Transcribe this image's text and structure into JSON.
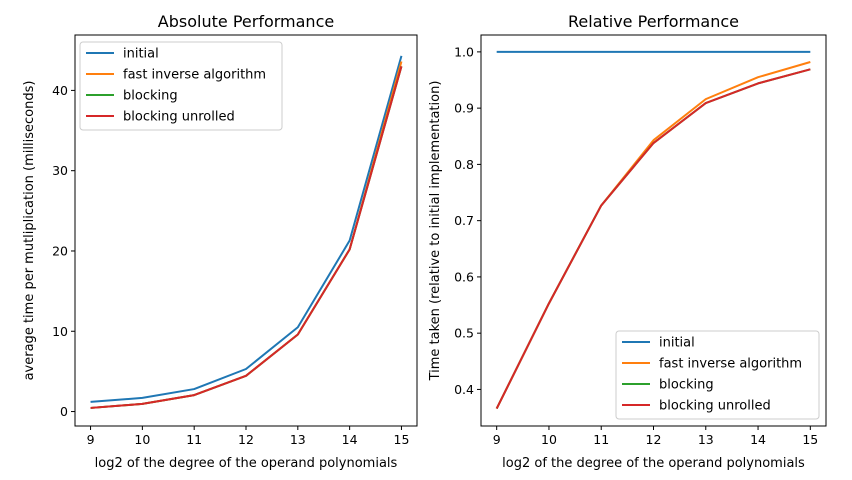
{
  "chart_data": [
    {
      "type": "line",
      "title": "Absolute Performance",
      "xlabel": "log2 of the degree of the operand polynomials",
      "ylabel": "average time per mutliplication (milliseconds)",
      "x": [
        9,
        10,
        11,
        12,
        13,
        14,
        15
      ],
      "xticks": [
        9,
        10,
        11,
        12,
        13,
        14,
        15
      ],
      "xlim": [
        8.7,
        15.3
      ],
      "yticks": [
        0,
        10,
        20,
        30,
        40
      ],
      "ylim": [
        -1.8,
        46.9
      ],
      "legend_position": "upper-left",
      "grid": false,
      "series": [
        {
          "name": "initial",
          "color": "#1f77b4",
          "values": [
            1.2,
            1.7,
            2.8,
            5.3,
            10.5,
            21.3,
            44.3
          ]
        },
        {
          "name": "fast inverse algorithm",
          "color": "#ff7f0e",
          "values": [
            0.45,
            0.95,
            2.05,
            4.45,
            9.6,
            20.2,
            43.6
          ]
        },
        {
          "name": "blocking",
          "color": "#2ca02c",
          "values": [
            0.45,
            0.95,
            2.05,
            4.45,
            9.6,
            20.2,
            43.0
          ]
        },
        {
          "name": "blocking unrolled",
          "color": "#d62728",
          "values": [
            0.45,
            0.95,
            2.05,
            4.45,
            9.6,
            20.2,
            43.0
          ]
        }
      ]
    },
    {
      "type": "line",
      "title": "Relative Performance",
      "xlabel": "log2 of the degree of the operand polynomials",
      "ylabel": "Time taken (relative to initial implementation)",
      "x": [
        9,
        10,
        11,
        12,
        13,
        14,
        15
      ],
      "xticks": [
        9,
        10,
        11,
        12,
        13,
        14,
        15
      ],
      "xlim": [
        8.7,
        15.3
      ],
      "yticks": [
        0.4,
        0.5,
        0.6,
        0.7,
        0.8,
        0.9,
        1.0
      ],
      "ylim": [
        0.335,
        1.03
      ],
      "legend_position": "lower-right",
      "grid": false,
      "series": [
        {
          "name": "initial",
          "color": "#1f77b4",
          "values": [
            1.0,
            1.0,
            1.0,
            1.0,
            1.0,
            1.0,
            1.0
          ]
        },
        {
          "name": "fast inverse algorithm",
          "color": "#ff7f0e",
          "values": [
            0.366,
            0.553,
            0.727,
            0.843,
            0.916,
            0.955,
            0.982
          ]
        },
        {
          "name": "blocking",
          "color": "#2ca02c",
          "values": [
            0.366,
            0.553,
            0.727,
            0.838,
            0.909,
            0.944,
            0.969
          ]
        },
        {
          "name": "blocking unrolled",
          "color": "#d62728",
          "values": [
            0.366,
            0.553,
            0.727,
            0.838,
            0.909,
            0.944,
            0.969
          ]
        }
      ]
    }
  ]
}
